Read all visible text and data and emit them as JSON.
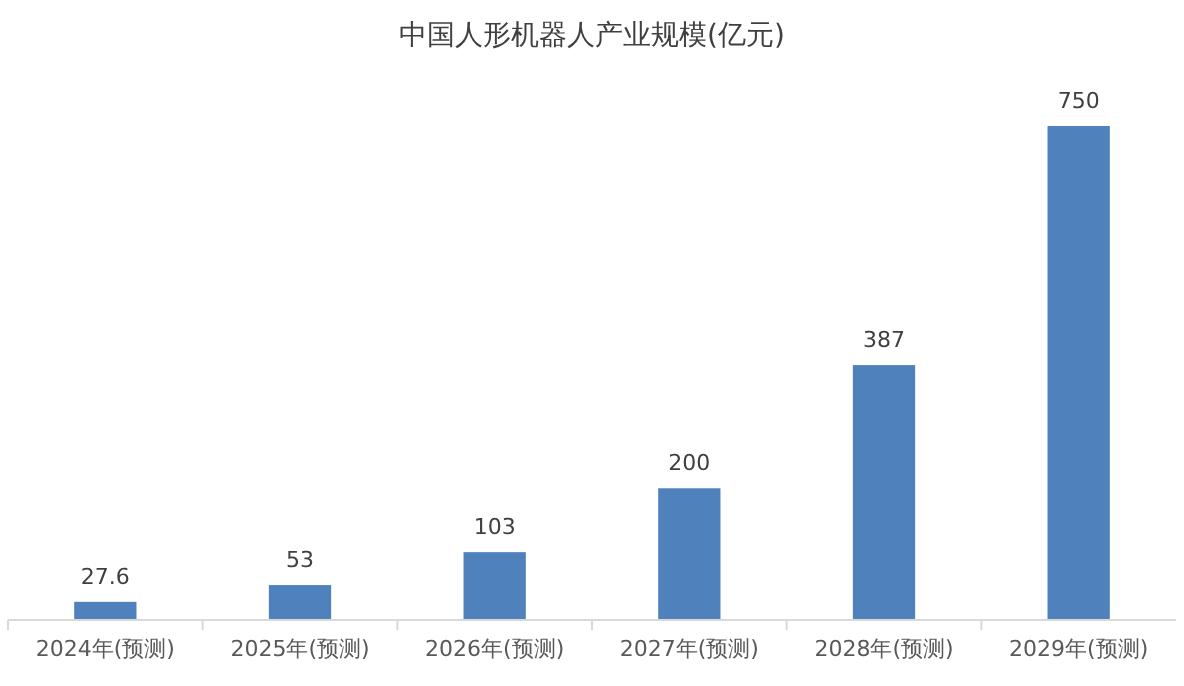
{
  "chart_data": {
    "type": "bar",
    "title": "中国人形机器人产业规模(亿元)",
    "categories": [
      "2024年(预测)",
      "2025年(预测)",
      "2026年(预测)",
      "2027年(预测)",
      "2028年(预测)",
      "2029年(预测)"
    ],
    "values": [
      27.6,
      53,
      103,
      200,
      387,
      750
    ],
    "color": "#4f81bd",
    "data_labels": true
  }
}
